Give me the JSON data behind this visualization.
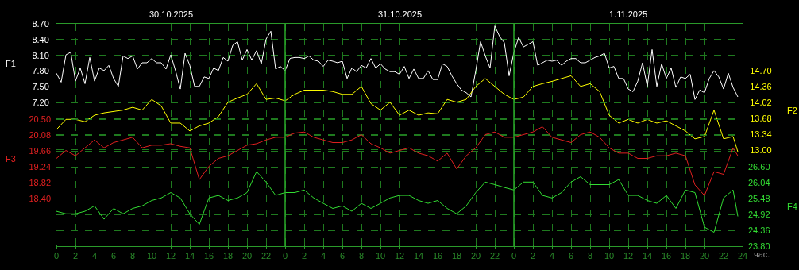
{
  "chart_data": [
    {
      "type": "line",
      "ylabel": "F1",
      "y2label": "F2",
      "xlabel": "час.",
      "annotations": [
        "30.10.2025",
        "31.10.2025",
        "1.11.2025"
      ],
      "xlim": [
        "2025-10-30T00:00",
        "2025-11-02T00:00"
      ],
      "xticks": [
        {
          "value": "2025-10-30T00:00",
          "label": "0"
        },
        {
          "value": "2025-10-30T02:00",
          "label": "2"
        },
        {
          "value": "2025-10-30T04:00",
          "label": "4"
        },
        {
          "value": "2025-10-30T06:00",
          "label": "6"
        },
        {
          "value": "2025-10-30T08:00",
          "label": "8"
        },
        {
          "value": "2025-10-30T10:00",
          "label": "10"
        },
        {
          "value": "2025-10-30T12:00",
          "label": "12"
        },
        {
          "value": "2025-10-30T14:00",
          "label": "14"
        },
        {
          "value": "2025-10-30T16:00",
          "label": "16"
        },
        {
          "value": "2025-10-30T18:00",
          "label": "18"
        },
        {
          "value": "2025-10-30T20:00",
          "label": "20"
        },
        {
          "value": "2025-10-30T22:00",
          "label": "22"
        },
        {
          "value": "2025-10-31T00:00",
          "label": "0"
        },
        {
          "value": "2025-10-31T02:00",
          "label": "2"
        },
        {
          "value": "2025-10-31T04:00",
          "label": "4"
        },
        {
          "value": "2025-10-31T06:00",
          "label": "6"
        },
        {
          "value": "2025-10-31T08:00",
          "label": "8"
        },
        {
          "value": "2025-10-31T10:00",
          "label": "10"
        },
        {
          "value": "2025-10-31T12:00",
          "label": "12"
        },
        {
          "value": "2025-10-31T14:00",
          "label": "14"
        },
        {
          "value": "2025-10-31T16:00",
          "label": "16"
        },
        {
          "value": "2025-10-31T18:00",
          "label": "18"
        },
        {
          "value": "2025-10-31T20:00",
          "label": "20"
        },
        {
          "value": "2025-10-31T22:00",
          "label": "22"
        },
        {
          "value": "2025-11-01T00:00",
          "label": "0"
        },
        {
          "value": "2025-11-01T02:00",
          "label": "2"
        },
        {
          "value": "2025-11-01T04:00",
          "label": "4"
        },
        {
          "value": "2025-11-01T06:00",
          "label": "6"
        },
        {
          "value": "2025-11-01T08:00",
          "label": "8"
        },
        {
          "value": "2025-11-01T10:00",
          "label": "10"
        },
        {
          "value": "2025-11-01T12:00",
          "label": "12"
        },
        {
          "value": "2025-11-01T14:00",
          "label": "14"
        },
        {
          "value": "2025-11-01T16:00",
          "label": "16"
        },
        {
          "value": "2025-11-01T18:00",
          "label": "18"
        },
        {
          "value": "2025-11-01T20:00",
          "label": "20"
        },
        {
          "value": "2025-11-01T22:00",
          "label": "22"
        },
        {
          "value": "2025-11-02T00:00",
          "label": "24"
        }
      ],
      "ylim": [
        4.5,
        8.7
      ],
      "yticks": [
        {
          "value": 8.7,
          "label": "8.70"
        },
        {
          "value": 8.4,
          "label": "8.40"
        },
        {
          "value": 8.1,
          "label": "8.10"
        },
        {
          "value": 7.8,
          "label": "7.80"
        },
        {
          "value": 7.5,
          "label": "7.50"
        },
        {
          "value": 7.2,
          "label": "7.20"
        }
      ],
      "y2lim": [
        10.96,
        15.72
      ],
      "y2ticks": [
        {
          "value": 14.7,
          "label": "14.70"
        },
        14.36,
        14.02,
        13.68,
        13.34,
        {
          "value": 13.0,
          "label": "13.00"
        }
      ],
      "grid": true,
      "line_style": "solid",
      "series": [
        {
          "color": "#ffffff",
          "x": [
            "2025-10-30T00:00",
            "2025-10-30T00:30",
            "2025-10-30T01:00",
            "2025-10-30T01:30",
            "2025-10-30T02:00",
            "2025-10-30T02:30",
            "2025-10-30T03:00",
            "2025-10-30T03:30",
            "2025-10-30T04:00",
            "2025-10-30T04:30",
            "2025-10-30T05:00",
            "2025-10-30T05:30",
            "2025-10-30T06:00",
            "2025-10-30T06:30",
            "2025-10-30T07:00",
            "2025-10-30T07:30",
            "2025-10-30T08:00",
            "2025-10-30T08:30",
            "2025-10-30T09:00",
            "2025-10-30T09:30",
            "2025-10-30T10:00",
            "2025-10-30T10:30",
            "2025-10-30T11:00",
            "2025-10-30T11:30",
            "2025-10-30T12:00",
            "2025-10-30T12:30",
            "2025-10-30T13:00",
            "2025-10-30T13:30",
            "2025-10-30T14:00",
            "2025-10-30T14:30",
            "2025-10-30T15:00",
            "2025-10-30T15:30",
            "2025-10-30T16:00",
            "2025-10-30T16:30",
            "2025-10-30T17:00",
            "2025-10-30T17:30",
            "2025-10-30T18:00",
            "2025-10-30T18:30",
            "2025-10-30T19:00",
            "2025-10-30T19:30",
            "2025-10-30T20:00",
            "2025-10-30T20:30",
            "2025-10-30T21:00",
            "2025-10-30T21:30",
            "2025-10-30T22:00",
            "2025-10-30T22:30",
            "2025-10-30T23:00",
            "2025-10-30T23:30",
            "2025-10-31T00:00",
            "2025-10-31T00:30",
            "2025-10-31T01:00",
            "2025-10-31T01:30",
            "2025-10-31T02:00",
            "2025-10-31T02:30",
            "2025-10-31T03:00",
            "2025-10-31T03:30",
            "2025-10-31T04:00",
            "2025-10-31T04:30",
            "2025-10-31T05:00",
            "2025-10-31T05:30",
            "2025-10-31T06:00",
            "2025-10-31T06:30",
            "2025-10-31T07:00",
            "2025-10-31T07:30",
            "2025-10-31T08:00",
            "2025-10-31T08:30",
            "2025-10-31T09:00",
            "2025-10-31T09:30",
            "2025-10-31T10:00",
            "2025-10-31T10:30",
            "2025-10-31T11:00",
            "2025-10-31T11:30",
            "2025-10-31T12:00",
            "2025-10-31T12:30",
            "2025-10-31T13:00",
            "2025-10-31T13:30",
            "2025-10-31T14:00",
            "2025-10-31T14:30",
            "2025-10-31T15:00",
            "2025-10-31T15:30",
            "2025-10-31T16:00",
            "2025-10-31T16:30",
            "2025-10-31T17:00",
            "2025-10-31T17:30",
            "2025-10-31T18:00",
            "2025-10-31T18:30",
            "2025-10-31T19:00",
            "2025-10-31T19:30",
            "2025-10-31T20:00",
            "2025-10-31T20:30",
            "2025-10-31T21:00",
            "2025-10-31T21:30",
            "2025-10-31T22:00",
            "2025-10-31T22:30",
            "2025-10-31T23:00",
            "2025-10-31T23:30",
            "2025-11-01T00:00",
            "2025-11-01T00:30",
            "2025-11-01T01:00",
            "2025-11-01T01:30",
            "2025-11-01T02:00",
            "2025-11-01T02:30",
            "2025-11-01T03:00",
            "2025-11-01T03:30",
            "2025-11-01T04:00",
            "2025-11-01T04:30",
            "2025-11-01T05:00",
            "2025-11-01T05:30",
            "2025-11-01T06:00",
            "2025-11-01T06:30",
            "2025-11-01T07:00",
            "2025-11-01T07:30",
            "2025-11-01T08:00",
            "2025-11-01T08:30",
            "2025-11-01T09:00",
            "2025-11-01T09:30",
            "2025-11-01T10:00",
            "2025-11-01T10:30",
            "2025-11-01T11:00",
            "2025-11-01T11:30",
            "2025-11-01T12:00",
            "2025-11-01T12:30",
            "2025-11-01T13:00",
            "2025-11-01T13:30",
            "2025-11-01T14:00",
            "2025-11-01T14:30",
            "2025-11-01T15:00",
            "2025-11-01T15:30",
            "2025-11-01T16:00",
            "2025-11-01T16:30",
            "2025-11-01T17:00",
            "2025-11-01T17:30",
            "2025-11-01T18:00",
            "2025-11-01T18:30",
            "2025-11-01T19:00",
            "2025-11-01T19:30",
            "2025-11-01T20:00",
            "2025-11-01T20:30",
            "2025-11-01T21:00",
            "2025-11-01T21:30",
            "2025-11-01T22:00",
            "2025-11-01T22:30",
            "2025-11-01T23:00",
            "2025-11-01T23:30"
          ],
          "values": [
            7.76,
            7.59,
            8.11,
            8.16,
            7.61,
            7.86,
            7.56,
            8.06,
            7.61,
            7.86,
            7.81,
            7.91,
            7.66,
            7.51,
            8.09,
            8.04,
            8.09,
            7.84,
            7.96,
            7.96,
            8.04,
            7.96,
            7.96,
            7.84,
            8.11,
            7.81,
            7.46,
            8.14,
            7.91,
            7.51,
            7.51,
            7.69,
            7.66,
            7.86,
            7.81,
            8.06,
            7.99,
            8.29,
            8.36,
            8.01,
            8.21,
            8.01,
            8.19,
            7.94,
            8.41,
            8.56,
            7.84,
            7.89,
            7.81,
            8.04,
            8.06,
            8.06,
            8.04,
            8.09,
            8.01,
            7.99,
            7.89,
            8.01,
            7.99,
            7.96,
            7.99,
            7.66,
            7.86,
            7.79,
            7.91,
            7.86,
            8.04,
            7.86,
            7.94,
            7.84,
            7.79,
            7.79,
            7.74,
            7.89,
            7.66,
            7.84,
            7.66,
            7.66,
            7.81,
            7.64,
            7.64,
            7.94,
            7.89,
            7.71,
            7.56,
            7.44,
            7.39,
            7.31,
            7.81,
            8.36,
            8.09,
            7.86,
            8.66,
            8.46,
            8.34,
            7.71,
            8.16,
            8.44,
            8.26,
            8.31,
            8.36,
            7.91,
            7.96,
            8.01,
            7.99,
            8.01,
            7.91,
            7.99,
            8.04,
            8.04,
            7.96,
            7.96,
            8.01,
            8.06,
            8.09,
            8.14,
            7.86,
            7.89,
            7.66,
            7.66,
            7.46,
            7.41,
            7.61,
            7.96,
            7.51,
            8.21,
            7.51,
            7.94,
            7.66,
            7.86,
            7.49,
            7.69,
            7.66,
            7.74,
            7.26,
            7.44,
            7.39,
            7.66,
            7.81,
            7.69,
            7.46,
            7.76,
            7.49,
            7.31
          ]
        },
        {
          "color": "#ffff00",
          "axis": "y2",
          "x": [
            "2025-10-30T00:00",
            "2025-10-30T01:00",
            "2025-10-30T02:00",
            "2025-10-30T03:00",
            "2025-10-30T04:00",
            "2025-10-30T05:00",
            "2025-10-30T06:00",
            "2025-10-30T07:00",
            "2025-10-30T08:00",
            "2025-10-30T09:00",
            "2025-10-30T10:00",
            "2025-10-30T11:00",
            "2025-10-30T12:00",
            "2025-10-30T13:00",
            "2025-10-30T14:00",
            "2025-10-30T15:00",
            "2025-10-30T16:00",
            "2025-10-30T17:00",
            "2025-10-30T18:00",
            "2025-10-30T19:00",
            "2025-10-30T20:00",
            "2025-10-30T21:00",
            "2025-10-30T22:00",
            "2025-10-30T23:00",
            "2025-10-31T00:00",
            "2025-10-31T01:00",
            "2025-10-31T02:00",
            "2025-10-31T03:00",
            "2025-10-31T04:00",
            "2025-10-31T05:00",
            "2025-10-31T06:00",
            "2025-10-31T07:00",
            "2025-10-31T08:00",
            "2025-10-31T09:00",
            "2025-10-31T10:00",
            "2025-10-31T11:00",
            "2025-10-31T12:00",
            "2025-10-31T13:00",
            "2025-10-31T14:00",
            "2025-10-31T15:00",
            "2025-10-31T16:00",
            "2025-10-31T17:00",
            "2025-10-31T18:00",
            "2025-10-31T19:00",
            "2025-10-31T20:00",
            "2025-10-31T21:00",
            "2025-10-31T22:00",
            "2025-10-31T23:00",
            "2025-11-01T00:00",
            "2025-11-01T01:00",
            "2025-11-01T02:00",
            "2025-11-01T03:00",
            "2025-11-01T04:00",
            "2025-11-01T05:00",
            "2025-11-01T06:00",
            "2025-11-01T07:00",
            "2025-11-01T08:00",
            "2025-11-01T09:00",
            "2025-11-01T10:00",
            "2025-11-01T11:00",
            "2025-11-01T12:00",
            "2025-11-01T13:00",
            "2025-11-01T14:00",
            "2025-11-01T15:00",
            "2025-11-01T16:00",
            "2025-11-01T17:00",
            "2025-11-01T18:00",
            "2025-11-01T19:00",
            "2025-11-01T20:00",
            "2025-11-01T21:00",
            "2025-11-01T22:00",
            "2025-11-01T23:00",
            "2025-11-01T23:30"
          ],
          "values": [
            13.44,
            13.66,
            13.66,
            13.61,
            13.75,
            13.8,
            13.83,
            13.86,
            13.92,
            13.86,
            14.09,
            13.95,
            13.58,
            13.58,
            13.41,
            13.52,
            13.58,
            13.72,
            14.03,
            14.12,
            14.2,
            14.43,
            14.09,
            14.12,
            14.06,
            14.2,
            14.29,
            14.29,
            14.29,
            14.26,
            14.2,
            14.2,
            14.37,
            14.0,
            13.86,
            14.03,
            13.75,
            13.86,
            13.75,
            13.8,
            13.78,
            14.09,
            14.03,
            14.09,
            14.37,
            14.54,
            14.37,
            14.2,
            14.09,
            14.14,
            14.37,
            14.43,
            14.48,
            14.54,
            14.6,
            14.37,
            14.43,
            14.26,
            13.75,
            13.58,
            13.66,
            13.58,
            13.66,
            13.58,
            13.63,
            13.52,
            13.41,
            13.24,
            13.29,
            13.86,
            13.24,
            13.29,
            12.96
          ]
        }
      ]
    },
    {
      "type": "line",
      "ylabel": "F3",
      "y2label": "F4",
      "tick_labels": "y",
      "xlim": [
        "2025-10-30T00:00",
        "2025-11-02T00:00"
      ],
      "x": [
        "2025-10-30T00:00",
        "2025-10-30T01:00",
        "2025-10-30T02:00",
        "2025-10-30T03:00",
        "2025-10-30T04:00",
        "2025-10-30T05:00",
        "2025-10-30T06:00",
        "2025-10-30T07:00",
        "2025-10-30T08:00",
        "2025-10-30T09:00",
        "2025-10-30T10:00",
        "2025-10-30T11:00",
        "2025-10-30T12:00",
        "2025-10-30T13:00",
        "2025-10-30T14:00",
        "2025-10-30T15:00",
        "2025-10-30T16:00",
        "2025-10-30T17:00",
        "2025-10-30T18:00",
        "2025-10-30T19:00",
        "2025-10-30T20:00",
        "2025-10-30T21:00",
        "2025-10-30T22:00",
        "2025-10-30T23:00",
        "2025-10-31T00:00",
        "2025-10-31T01:00",
        "2025-10-31T02:00",
        "2025-10-31T03:00",
        "2025-10-31T04:00",
        "2025-10-31T05:00",
        "2025-10-31T06:00",
        "2025-10-31T07:00",
        "2025-10-31T08:00",
        "2025-10-31T09:00",
        "2025-10-31T10:00",
        "2025-10-31T11:00",
        "2025-10-31T12:00",
        "2025-10-31T13:00",
        "2025-10-31T14:00",
        "2025-10-31T15:00",
        "2025-10-31T16:00",
        "2025-10-31T17:00",
        "2025-10-31T18:00",
        "2025-10-31T19:00",
        "2025-10-31T20:00",
        "2025-10-31T21:00",
        "2025-10-31T22:00",
        "2025-10-31T23:00",
        "2025-11-01T00:00",
        "2025-11-01T01:00",
        "2025-11-01T02:00",
        "2025-11-01T03:00",
        "2025-11-01T04:00",
        "2025-11-01T05:00",
        "2025-11-01T06:00",
        "2025-11-01T07:00",
        "2025-11-01T08:00",
        "2025-11-01T09:00",
        "2025-11-01T10:00",
        "2025-11-01T11:00",
        "2025-11-01T12:00",
        "2025-11-01T13:00",
        "2025-11-01T14:00",
        "2025-11-01T15:00",
        "2025-11-01T16:00",
        "2025-11-01T17:00",
        "2025-11-01T18:00",
        "2025-11-01T19:00",
        "2025-11-01T20:00",
        "2025-11-01T21:00",
        "2025-11-01T22:00",
        "2025-11-01T23:00",
        "2025-11-01T23:30"
      ],
      "ylim": [
        17.14,
        23.02
      ],
      "yticks": [
        {
          "value": 20.5,
          "label": "20.50"
        },
        20.08,
        19.66,
        19.24,
        18.82,
        {
          "value": 18.4,
          "label": "18.40"
        }
      ],
      "y2lim": [
        23.8,
        31.64
      ],
      "y2ticks": [
        {
          "value": 26.6,
          "label": "26.60"
        },
        26.04,
        25.48,
        24.92,
        24.36,
        {
          "value": 23.8,
          "label": "23.80"
        }
      ],
      "grid": "y",
      "line_style": "solid",
      "ref_lines": [
        {
          "axis": "x",
          "value": "2025-10-31T00:00",
          "color": "#2aa82a"
        },
        {
          "axis": "x",
          "value": "2025-11-01T00:00",
          "color": "#2aa82a"
        }
      ],
      "series": [
        {
          "color": "#e02020",
          "values": [
            19.46,
            19.67,
            19.53,
            19.74,
            19.95,
            19.74,
            19.88,
            19.95,
            20.02,
            19.74,
            19.81,
            19.81,
            19.85,
            19.78,
            19.74,
            18.9,
            19.25,
            19.46,
            19.53,
            19.67,
            19.81,
            19.85,
            19.95,
            20.02,
            20.02,
            20.13,
            20.16,
            20.02,
            19.95,
            19.88,
            19.88,
            19.95,
            20.09,
            19.85,
            19.74,
            19.6,
            19.67,
            19.74,
            19.6,
            19.53,
            19.39,
            19.6,
            19.18,
            19.53,
            19.74,
            20.09,
            20.16,
            20.02,
            20.02,
            20.09,
            20.16,
            20.3,
            20.02,
            19.95,
            19.88,
            20.09,
            20.16,
            20.02,
            19.74,
            19.6,
            19.6,
            19.46,
            19.46,
            19.53,
            19.53,
            19.6,
            19.53,
            18.76,
            18.48,
            19.11,
            19.04,
            19.74,
            19.53
          ]
        },
        {
          "color": "#33dd33",
          "axis": "y2",
          "values": [
            25.03,
            24.94,
            24.94,
            25.03,
            25.22,
            24.75,
            25.13,
            24.94,
            25.13,
            25.22,
            25.41,
            25.5,
            25.69,
            25.5,
            24.94,
            24.57,
            25.5,
            25.59,
            25.41,
            25.5,
            25.69,
            26.43,
            26.06,
            25.59,
            25.69,
            25.69,
            25.78,
            25.5,
            25.31,
            25.13,
            25.22,
            25.03,
            25.31,
            25.13,
            25.31,
            25.5,
            25.59,
            25.59,
            25.41,
            25.31,
            25.41,
            25.13,
            24.94,
            25.22,
            25.69,
            26.06,
            25.97,
            25.87,
            25.78,
            26.06,
            26.06,
            25.59,
            25.5,
            25.69,
            26.06,
            26.25,
            25.97,
            25.97,
            25.97,
            26.15,
            25.59,
            25.59,
            25.41,
            25.31,
            25.59,
            25.13,
            25.78,
            25.69,
            24.47,
            24.29,
            25.5,
            25.78,
            24.85
          ]
        }
      ]
    }
  ]
}
